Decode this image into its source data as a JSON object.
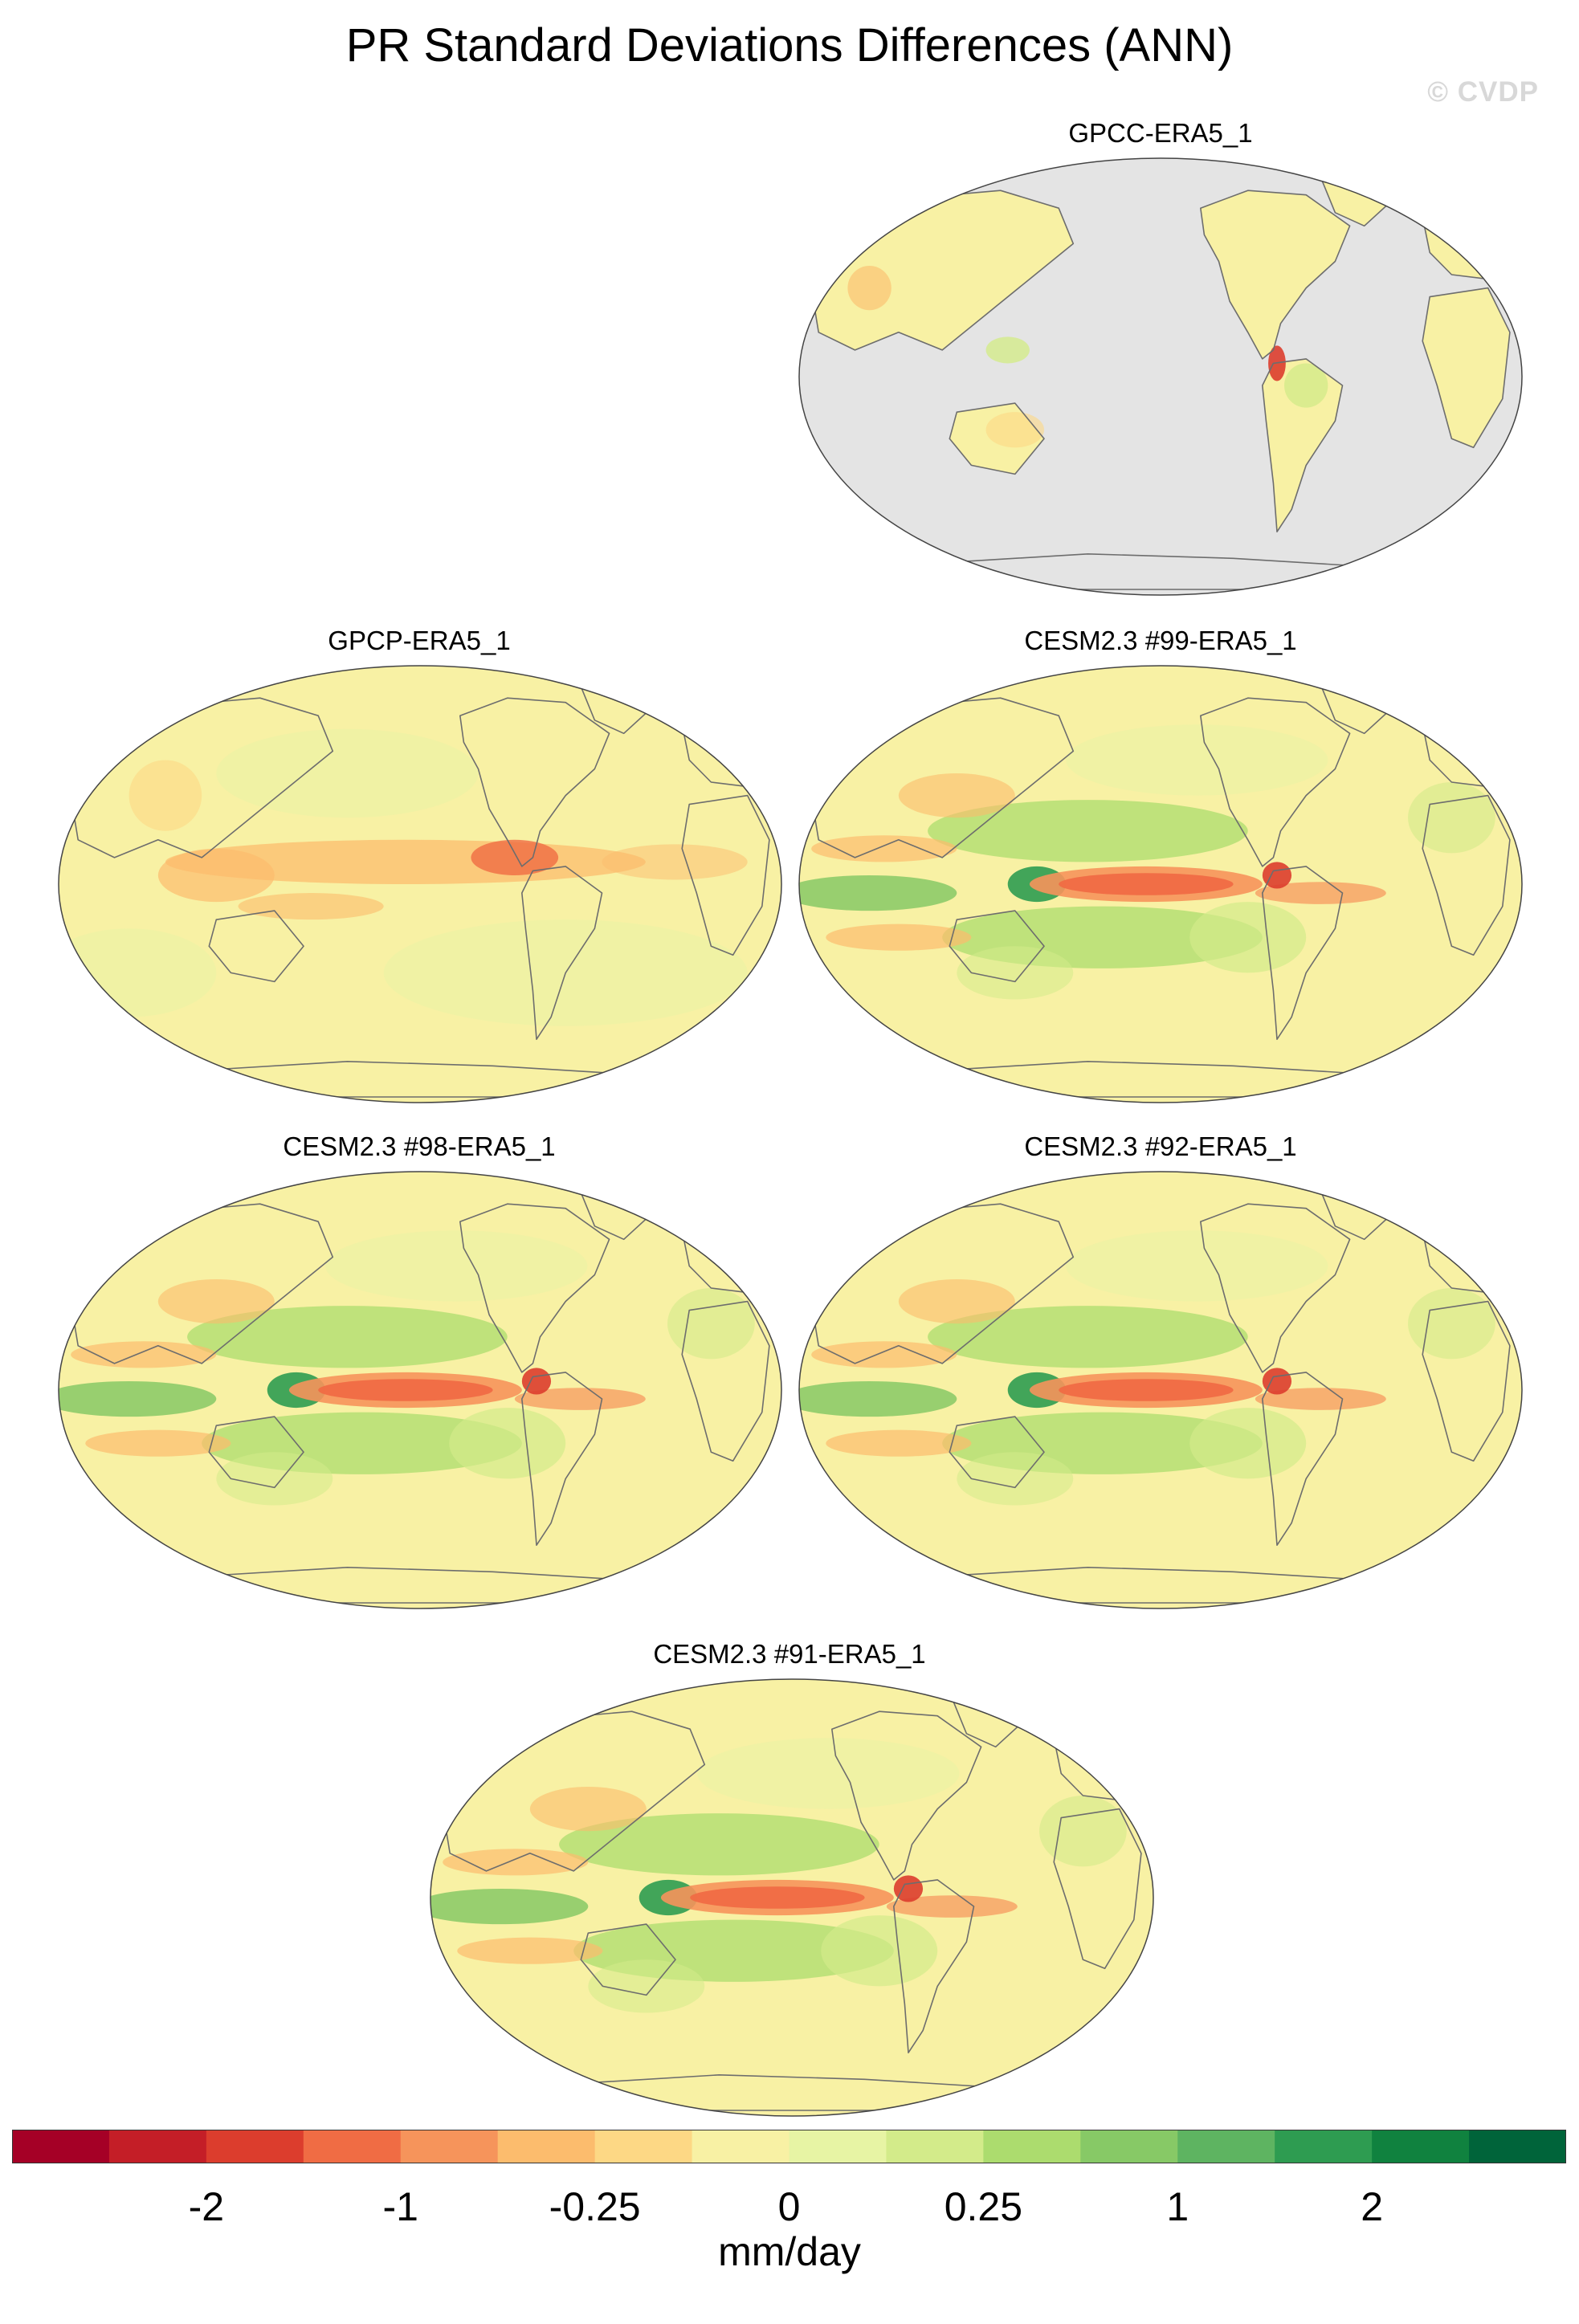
{
  "title": "PR Standard Deviations Differences (ANN)",
  "watermark": "© CVDP",
  "panels": [
    {
      "label": "GPCC-ERA5_1",
      "style": "gpcc"
    },
    {
      "label": "GPCP-ERA5_1",
      "style": "gpcp"
    },
    {
      "label": "CESM2.3 #99-ERA5_1",
      "style": "model"
    },
    {
      "label": "CESM2.3 #98-ERA5_1",
      "style": "model"
    },
    {
      "label": "CESM2.3 #92-ERA5_1",
      "style": "model"
    },
    {
      "label": "CESM2.3 #91-ERA5_1",
      "style": "model"
    }
  ],
  "colors": {
    "missing_ocean": "#e4e4e4",
    "neutral": "#f8f1a4",
    "colorbar": [
      "#a50026",
      "#c41e27",
      "#dc3d2d",
      "#f06c44",
      "#f6945b",
      "#fcbc6d",
      "#fdd885",
      "#f8f1a4",
      "#e7f4a4",
      "#d3eb8a",
      "#acdc6e",
      "#87c966",
      "#5eb461",
      "#2e9c51",
      "#10823f",
      "#00643a"
    ]
  },
  "colorbar": {
    "tick_labels": [
      "-2",
      "-1",
      "-0.25",
      "0",
      "0.25",
      "1",
      "2"
    ],
    "units": "mm/day"
  }
}
